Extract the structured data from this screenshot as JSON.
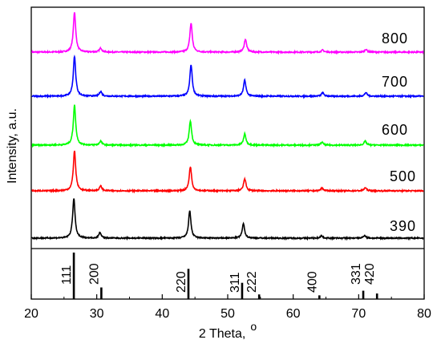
{
  "chart_data": {
    "type": "line",
    "xlabel": "2 Theta,",
    "xlabel_superscript": "o",
    "ylabel": "Intensity, a.u.",
    "xlim": [
      20,
      80
    ],
    "xticks": [
      20,
      30,
      40,
      50,
      60,
      70,
      80
    ],
    "grid": false,
    "legend": "none",
    "series": [
      {
        "name": "800",
        "color": "#ff00ff",
        "peaks": [
          [
            26.6,
            1.0
          ],
          [
            30.6,
            0.1
          ],
          [
            44.4,
            0.72
          ],
          [
            52.7,
            0.32
          ],
          [
            64.5,
            0.05
          ],
          [
            71.1,
            0.07
          ]
        ]
      },
      {
        "name": "700",
        "color": "#0000ff",
        "peaks": [
          [
            26.6,
            1.0
          ],
          [
            30.6,
            0.12
          ],
          [
            44.4,
            0.78
          ],
          [
            52.6,
            0.4
          ],
          [
            64.5,
            0.09
          ],
          [
            71.1,
            0.09
          ]
        ]
      },
      {
        "name": "600",
        "color": "#00ff00",
        "peaks": [
          [
            26.6,
            1.0
          ],
          [
            30.6,
            0.1
          ],
          [
            44.3,
            0.6
          ],
          [
            52.6,
            0.28
          ],
          [
            64.4,
            0.07
          ],
          [
            71.0,
            0.1
          ]
        ]
      },
      {
        "name": "500",
        "color": "#ff0000",
        "peaks": [
          [
            26.6,
            1.0
          ],
          [
            30.6,
            0.12
          ],
          [
            44.3,
            0.6
          ],
          [
            52.6,
            0.3
          ],
          [
            64.4,
            0.07
          ],
          [
            71.0,
            0.08
          ]
        ]
      },
      {
        "name": "390",
        "color": "#000000",
        "peaks": [
          [
            26.5,
            1.0
          ],
          [
            30.5,
            0.14
          ],
          [
            44.2,
            0.68
          ],
          [
            52.4,
            0.36
          ],
          [
            64.3,
            0.06
          ],
          [
            70.9,
            0.07
          ]
        ]
      }
    ],
    "reference_lines": [
      {
        "label": "111",
        "x": 26.5,
        "intensity": 1.0
      },
      {
        "label": "200",
        "x": 30.7,
        "intensity": 0.25
      },
      {
        "label": "220",
        "x": 44.0,
        "intensity": 0.65
      },
      {
        "label": "311",
        "x": 52.2,
        "intensity": 0.35
      },
      {
        "label": "222",
        "x": 54.8,
        "intensity": 0.1
      },
      {
        "label": "400",
        "x": 64.0,
        "intensity": 0.08
      },
      {
        "label": "331",
        "x": 70.7,
        "intensity": 0.18
      },
      {
        "label": "420",
        "x": 72.8,
        "intensity": 0.12
      }
    ]
  }
}
